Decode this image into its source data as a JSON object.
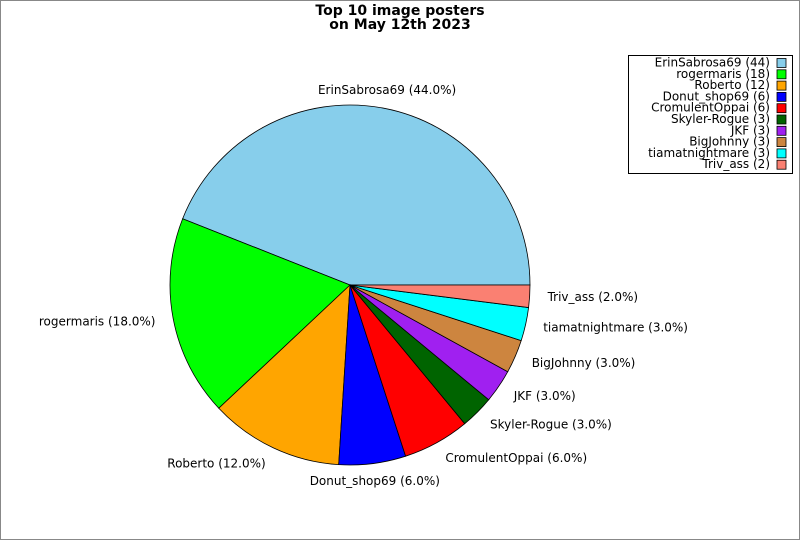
{
  "chart_data": {
    "type": "pie",
    "title": "Top 10 image posters",
    "subtitle": "on May 12th 2023",
    "values": [
      44,
      18,
      12,
      6,
      6,
      3,
      3,
      3,
      3,
      2
    ],
    "value_labels": [
      "ErinSabrosa69 (44.0%)",
      "rogermaris (18.0%)",
      "Roberto (12.0%)",
      "Donut_shop69 (6.0%)",
      "CromulentOppai (6.0%)",
      "Skyler-Rogue (3.0%)",
      "JKF (3.0%)",
      "BigJohnny (3.0%)",
      "tiamatnightmare (3.0%)",
      "Triv_ass (2.0%)"
    ],
    "legend_labels": [
      "ErinSabrosa69 (44)",
      "rogermaris (18)",
      "Roberto (12)",
      "Donut_shop69 (6)",
      "CromulentOppai (6)",
      "Skyler-Rogue (3)",
      "JKF (3)",
      "BigJohnny (3)",
      "tiamatnightmare (3)",
      "Triv_ass (2)"
    ],
    "colors": [
      "#87ceeb",
      "#00ff00",
      "#ffa500",
      "#0000ff",
      "#ff0000",
      "#006400",
      "#a020f0",
      "#cd853f",
      "#00ffff",
      "#fa8072"
    ],
    "legend": "upper right"
  }
}
